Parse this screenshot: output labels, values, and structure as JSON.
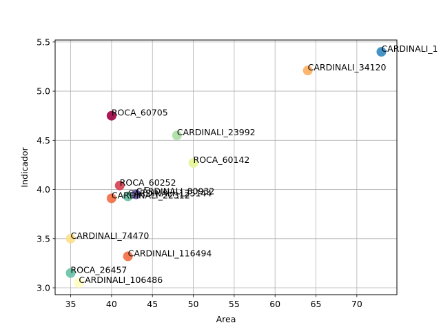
{
  "chart_data": {
    "type": "scatter",
    "title": "",
    "xlabel": "Area",
    "ylabel": "Indicador",
    "xlim": [
      33.1,
      74.9
    ],
    "ylim": [
      2.93,
      5.52
    ],
    "xticks": [
      35,
      40,
      45,
      50,
      55,
      60,
      65,
      70
    ],
    "yticks": [
      3.0,
      3.5,
      4.0,
      4.5,
      5.0,
      5.5
    ],
    "xtick_labels": [
      "35",
      "40",
      "45",
      "50",
      "55",
      "60",
      "65",
      "70"
    ],
    "ytick_labels": [
      "3.0",
      "3.5",
      "4.0",
      "4.5",
      "5.0",
      "5.5"
    ],
    "grid": true,
    "legend": "none",
    "colormap": "Spectral",
    "points": [
      {
        "label": "CARDINALI_1",
        "x": 73,
        "y": 5.4,
        "color": "#3288bd"
      },
      {
        "label": "CARDINALI_34120",
        "x": 64,
        "y": 5.21,
        "color": "#fdae61"
      },
      {
        "label": "ROCA_60705",
        "x": 40,
        "y": 4.75,
        "color": "#9e0142"
      },
      {
        "label": "CARDINALI_23992",
        "x": 48,
        "y": 4.55,
        "color": "#abdda4"
      },
      {
        "label": "ROCA_60142",
        "x": 50,
        "y": 4.27,
        "color": "#e6f598"
      },
      {
        "label": "ROCA_60252",
        "x": 41,
        "y": 4.04,
        "color": "#d53e4f"
      },
      {
        "label": "CARDINALI_80932",
        "x": 43,
        "y": 3.95,
        "color": "#5e4fa2"
      },
      {
        "label": "CARDINALI_125144",
        "x": 42,
        "y": 3.93,
        "color": "#66c2a5"
      },
      {
        "label": "CARDINALI_22312",
        "x": 40,
        "y": 3.91,
        "color": "#f46d43"
      },
      {
        "label": "CARDINALI_74470",
        "x": 35,
        "y": 3.5,
        "color": "#fee08b"
      },
      {
        "label": "CARDINALI_116494",
        "x": 42,
        "y": 3.32,
        "color": "#f46d43"
      },
      {
        "label": "ROCA_26457",
        "x": 35,
        "y": 3.15,
        "color": "#66c2a5"
      },
      {
        "label": "CARDINALI_106486",
        "x": 36,
        "y": 3.05,
        "color": "#ffffbf"
      }
    ]
  }
}
